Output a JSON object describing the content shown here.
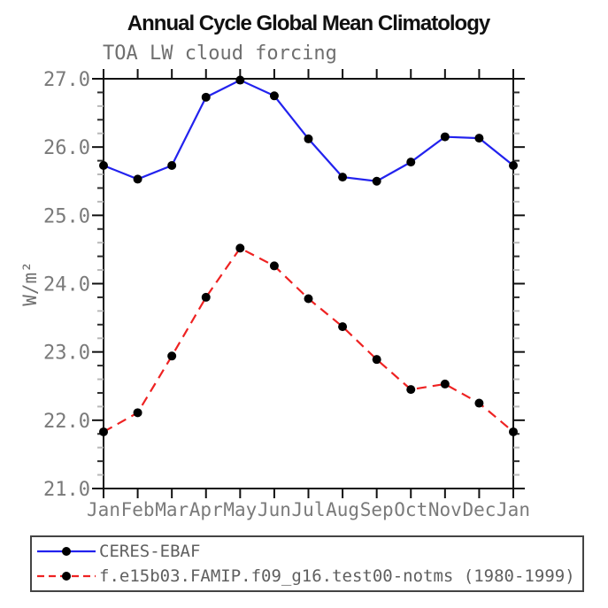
{
  "chart_data": {
    "type": "line",
    "title": "Annual Cycle Global Mean Climatology",
    "subtitle": "TOA LW cloud forcing",
    "ylabel": "W/m²",
    "x": [
      "Jan",
      "Feb",
      "Mar",
      "Apr",
      "May",
      "Jun",
      "Jul",
      "Aug",
      "Sep",
      "Oct",
      "Nov",
      "Dec",
      "Jan"
    ],
    "ylim": [
      21.0,
      27.0
    ],
    "ytick_labels": [
      "21.0",
      "22.0",
      "23.0",
      "24.0",
      "25.0",
      "26.0",
      "27.0"
    ],
    "minor_tick_step": 0.2,
    "grid": false,
    "legend_position": "bottom",
    "series": [
      {
        "name": "CERES-EBAF",
        "color": "#2222ee",
        "line_style": "solid",
        "marker": "circle",
        "marker_color": "#000000",
        "values": [
          25.73,
          25.53,
          25.73,
          26.73,
          26.98,
          26.75,
          26.12,
          25.56,
          25.5,
          25.78,
          26.15,
          26.13,
          25.73
        ]
      },
      {
        "name": "f.e15b03.FAMIP.f09_g16.test00-notms (1980-1999)",
        "color": "#ee2222",
        "line_style": "dashed",
        "marker": "circle",
        "marker_color": "#000000",
        "values": [
          21.83,
          22.11,
          22.94,
          23.8,
          24.52,
          24.26,
          23.78,
          23.37,
          22.89,
          22.45,
          22.53,
          22.25,
          21.83
        ]
      }
    ]
  },
  "style_colors": {
    "axis": "#111111",
    "tick_minor_dark": "#2e2e2e",
    "tick_minor_light": "#b9b9b9",
    "text_gray": "#7a7a7a",
    "legend_border": "#444444"
  }
}
